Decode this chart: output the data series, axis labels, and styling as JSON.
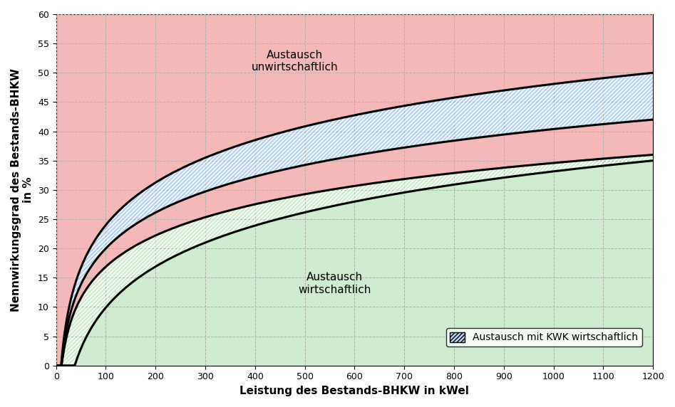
{
  "xlabel": "Leistung des Bestands-BHKW in kWel",
  "ylabel": "Nennwirkungsgrad des Bestands-BHKW\nin %",
  "xlim": [
    0,
    1200
  ],
  "ylim": [
    0,
    60
  ],
  "xticks": [
    0,
    100,
    200,
    300,
    400,
    500,
    600,
    700,
    800,
    900,
    1000,
    1100,
    1200
  ],
  "yticks": [
    0,
    5,
    10,
    15,
    20,
    25,
    30,
    35,
    40,
    45,
    50,
    55,
    60
  ],
  "background_color": "#ffffff",
  "grid_color": "#b0b0b0",
  "label_unwirtschaftlich": "Austausch\nunwirtschaftlich",
  "label_wirtschaftlich": "Austausch\nwirtschaftlich",
  "label_kwk": "Austausch mit KWK wirtschaftlich",
  "color_red": "#f4b8b8",
  "color_blue": "#b8d4f0",
  "color_green": "#d0ecd0",
  "color_white": "#ffffff",
  "curve_color": "#000000",
  "curve_lw": 2.2,
  "annotation_fontsize": 11,
  "label_fontsize": 11,
  "tick_fontsize": 9,
  "c1_pts": [
    [
      55,
      0
    ],
    [
      100,
      24
    ],
    [
      200,
      38
    ],
    [
      500,
      45
    ],
    [
      1200,
      50
    ]
  ],
  "c2_pts": [
    [
      75,
      0
    ],
    [
      100,
      20
    ],
    [
      200,
      31
    ],
    [
      500,
      40
    ],
    [
      1200,
      42
    ]
  ],
  "c3_pts": [
    [
      90,
      0
    ],
    [
      150,
      20
    ],
    [
      200,
      25
    ],
    [
      500,
      33
    ],
    [
      1200,
      36
    ]
  ],
  "c4_pts": [
    [
      100,
      0
    ],
    [
      150,
      14
    ],
    [
      200,
      20
    ],
    [
      500,
      29
    ],
    [
      1200,
      35
    ]
  ]
}
